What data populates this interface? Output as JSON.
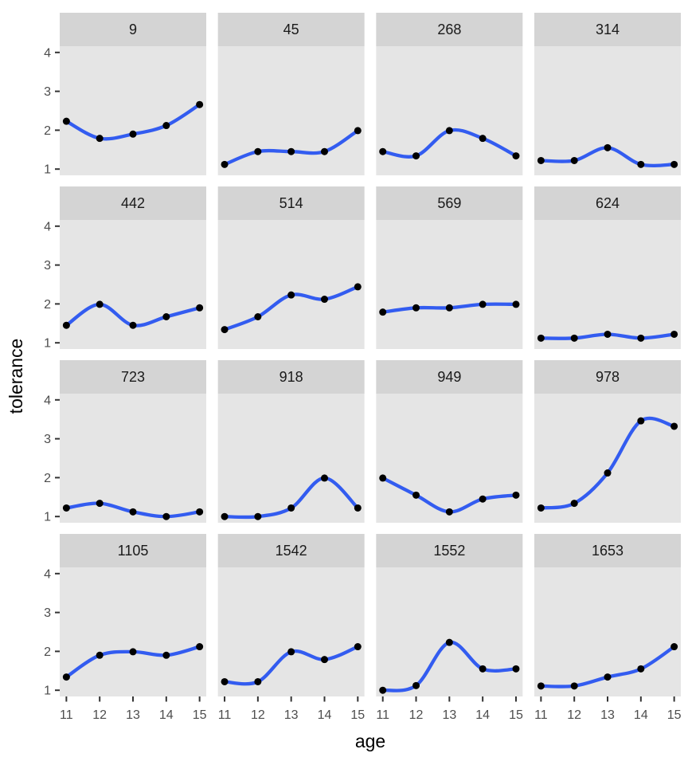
{
  "chart_data": {
    "type": "line",
    "title": "",
    "xlabel": "age",
    "ylabel": "tolerance",
    "x": [
      11,
      12,
      13,
      14,
      15
    ],
    "x_ticks": [
      "11",
      "12",
      "13",
      "14",
      "15"
    ],
    "y_ticks": [
      "1",
      "2",
      "3",
      "4"
    ],
    "xlim": [
      10.8,
      15.2
    ],
    "ylim": [
      0.84,
      4.16
    ],
    "grid": false,
    "legend": "none",
    "curve": "smooth",
    "facet_layout": {
      "rows": 4,
      "cols": 4
    },
    "facets": [
      {
        "label": "9",
        "values": [
          2.23,
          1.79,
          1.9,
          2.12,
          2.66
        ]
      },
      {
        "label": "45",
        "values": [
          1.12,
          1.45,
          1.45,
          1.45,
          1.99
        ]
      },
      {
        "label": "268",
        "values": [
          1.45,
          1.34,
          1.99,
          1.79,
          1.34
        ]
      },
      {
        "label": "314",
        "values": [
          1.22,
          1.22,
          1.55,
          1.12,
          1.12
        ]
      },
      {
        "label": "442",
        "values": [
          1.45,
          1.99,
          1.45,
          1.67,
          1.9
        ]
      },
      {
        "label": "514",
        "values": [
          1.34,
          1.67,
          2.23,
          2.12,
          2.44
        ]
      },
      {
        "label": "569",
        "values": [
          1.79,
          1.9,
          1.9,
          1.99,
          1.99
        ]
      },
      {
        "label": "624",
        "values": [
          1.12,
          1.12,
          1.22,
          1.12,
          1.22
        ]
      },
      {
        "label": "723",
        "values": [
          1.22,
          1.34,
          1.12,
          1.0,
          1.12
        ]
      },
      {
        "label": "918",
        "values": [
          1.0,
          1.0,
          1.22,
          1.99,
          1.22
        ]
      },
      {
        "label": "949",
        "values": [
          1.99,
          1.55,
          1.12,
          1.45,
          1.55
        ]
      },
      {
        "label": "978",
        "values": [
          1.22,
          1.34,
          2.12,
          3.46,
          3.32
        ]
      },
      {
        "label": "1105",
        "values": [
          1.34,
          1.9,
          1.99,
          1.9,
          2.12
        ]
      },
      {
        "label": "1542",
        "values": [
          1.22,
          1.22,
          1.99,
          1.79,
          2.12
        ]
      },
      {
        "label": "1552",
        "values": [
          1.0,
          1.12,
          2.23,
          1.55,
          1.55
        ]
      },
      {
        "label": "1653",
        "values": [
          1.11,
          1.11,
          1.34,
          1.55,
          2.12
        ]
      }
    ],
    "colors": {
      "line": "#335CF0",
      "point": "#000000",
      "panel_bg": "#E5E5E5",
      "strip_bg": "#D4D4D4",
      "strip_text": "#1A1A1A",
      "tick_label": "#4D4D4D",
      "tick_mark": "#333333",
      "axis_title": "#000000",
      "background": "#FFFFFF"
    }
  }
}
